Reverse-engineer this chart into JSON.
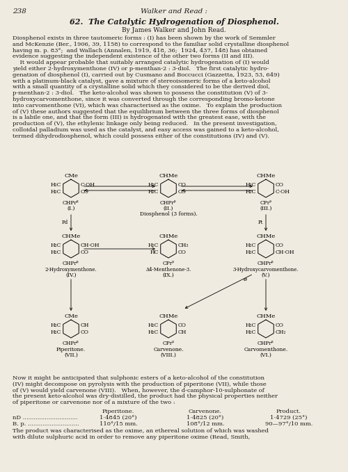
{
  "page_number": "238",
  "header": "Walker and Read :",
  "title_number": "62.",
  "title": "The Catalytic Hydrogenation of Diosphenol.",
  "authors": "By James Walker and John Read.",
  "body_text": [
    "Diosphenol exists in three tautomeric forms : (I) has been shown by the work of Semmler",
    "and McKenzie (Ber., 1906, 39, 1158) to correspond to the familiar solid crystalline diosphenol",
    "having m. p. 83°;  and Wallach (Annalen, 1919, 418, 36;  1924, 437, 148) has obtained",
    "evidence suggesting the independent existence of the other two forms (II and III).",
    "    It would appear probable that suitably arranged catalytic hydrogenation of (I) would",
    "yield either 2-hydroxymenthone (IV) or p-menthan-2 : 3-diol.   The first catalytic hydro-",
    "genation of diosphenol (I), carried out by Cusmano and Boccucci (Gazzetta, 1923, 53, 649)",
    "with a platinum-black catalyst, gave a mixture of stereoisomeric forms of a keto-alcohol",
    "with a small quantity of a crystalline solid which they considered to be the derived diol,",
    "p-menthan-2 : 3-diol.   The keto-alcohol was shown to possess the constitution (V) of 3-",
    "hydroxycarvomenthone, since it was converted through the corresponding bromo-ketone",
    "into carvomenthone (VI), which was characterised as the oxime.   To explain the production",
    "of (V) these authors suggested that the equilibrium between the three forms of diosphenol",
    "is a labile one, and that the form (III) is hydrogenated with the greatest ease, with the",
    "production of (V), the ethylenic linkage only being reduced.   In the present investigation,",
    "colloidal palladium was used as the catalyst, and easy access was gained to a keto-alcohol,",
    "termed dihydrodiosphenol, which could possess either of the constitutions (IV) and (V)."
  ],
  "footer_text": [
    "Now it might be anticipated that sulphonic esters of a keto-alcohol of the constitution",
    "(IV) might decompose on pyrolysis with the production of piperitone (VII), while those",
    "of (V) would yield carvenone (VIII).   When, however, the d-camphor-10-sulphonate of",
    "the present keto-alcohol was dry-distilled, the product had the physical properties neither",
    "of piperitone or carvenone nor of a mixture of the two :"
  ],
  "table_header": [
    "",
    "Piperitone.",
    "Carvenone.",
    "Product."
  ],
  "table_row1": [
    "nD ..............................",
    "1·4845 (20°)",
    "1·4825 (20°)",
    "1·4729 (25°)"
  ],
  "table_row2": [
    "B. p. ............................",
    "110°/15 mm.",
    "108°/12 mm.",
    "90—97°/10 mm."
  ],
  "table_footer": "The product was characterised as the oxime, an ethereal solution of which was washed",
  "table_footer2": "with dilute sulphuric acid in order to remove any piperitone oxime (Read, Smith,",
  "bg_color": "#f0ebe0",
  "text_color": "#1a1a1a"
}
